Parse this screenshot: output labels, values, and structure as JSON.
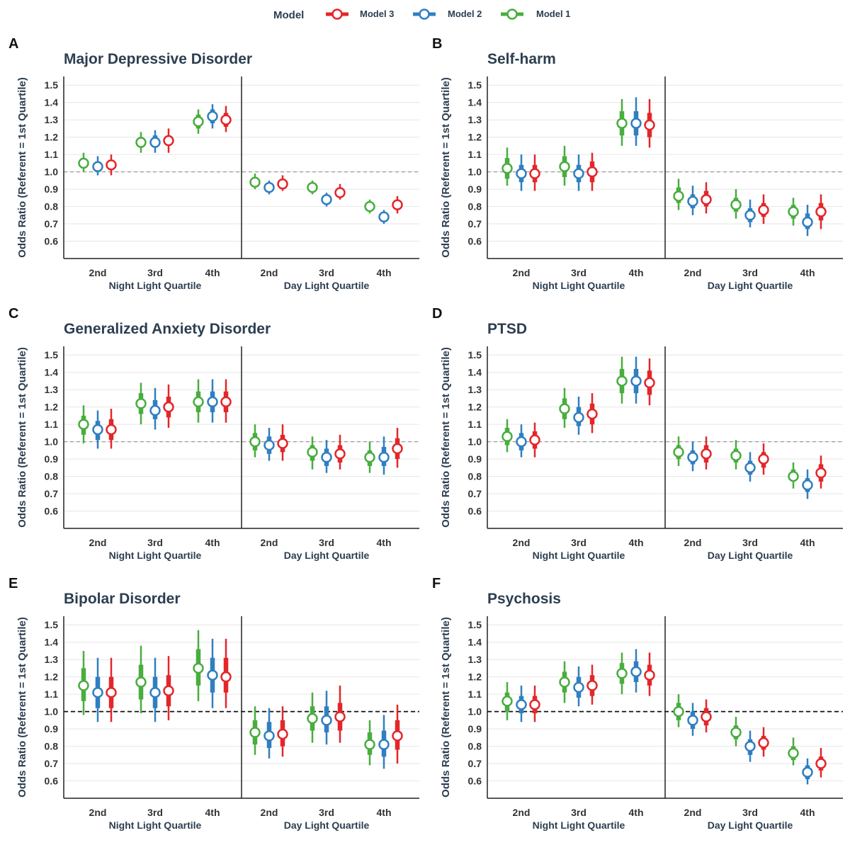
{
  "legend": {
    "title": "Model",
    "items": [
      {
        "label": "Model 3",
        "color": "#e3262a"
      },
      {
        "label": "Model 2",
        "color": "#2f7fc1"
      },
      {
        "label": "Model 1",
        "color": "#49ad3f"
      }
    ]
  },
  "chart_data": [
    {
      "panel": "A",
      "title": "Major Depressive Disorder",
      "type": "pointrange",
      "ylabel": "Odds Ratio (Referent = 1st Quartile)",
      "ylim": [
        0.5,
        1.55
      ],
      "yticks": [
        0.6,
        0.7,
        0.8,
        0.9,
        1.0,
        1.1,
        1.2,
        1.3,
        1.4,
        1.5
      ],
      "ref_line": 1.0,
      "ref_style": "dashed-gray",
      "groups": [
        "Night Light Quartile",
        "Day Light Quartile"
      ],
      "categories": [
        "2nd",
        "3rd",
        "4th"
      ],
      "series": [
        {
          "name": "Model 1",
          "color": "#49ad3f",
          "estimates": [
            [
              1.05,
              1.0,
              1.11,
              1.02,
              1.08
            ],
            [
              1.17,
              1.11,
              1.23,
              1.14,
              1.2
            ],
            [
              1.29,
              1.22,
              1.36,
              1.25,
              1.33
            ],
            [
              0.94,
              0.9,
              0.99,
              0.92,
              0.97
            ],
            [
              0.91,
              0.87,
              0.95,
              0.89,
              0.93
            ],
            [
              0.8,
              0.76,
              0.84,
              0.78,
              0.82
            ]
          ]
        },
        {
          "name": "Model 2",
          "color": "#2f7fc1",
          "estimates": [
            [
              1.03,
              0.98,
              1.09,
              1.0,
              1.06
            ],
            [
              1.17,
              1.11,
              1.24,
              1.14,
              1.21
            ],
            [
              1.32,
              1.25,
              1.39,
              1.28,
              1.36
            ],
            [
              0.91,
              0.87,
              0.95,
              0.89,
              0.93
            ],
            [
              0.84,
              0.8,
              0.88,
              0.82,
              0.86
            ],
            [
              0.74,
              0.7,
              0.78,
              0.72,
              0.76
            ]
          ]
        },
        {
          "name": "Model 3",
          "color": "#e3262a",
          "estimates": [
            [
              1.04,
              0.98,
              1.1,
              1.01,
              1.07
            ],
            [
              1.18,
              1.11,
              1.25,
              1.15,
              1.21
            ],
            [
              1.3,
              1.23,
              1.38,
              1.26,
              1.34
            ],
            [
              0.93,
              0.89,
              0.98,
              0.91,
              0.96
            ],
            [
              0.88,
              0.84,
              0.93,
              0.86,
              0.91
            ],
            [
              0.81,
              0.76,
              0.86,
              0.78,
              0.84
            ]
          ]
        }
      ]
    },
    {
      "panel": "B",
      "title": "Self-harm",
      "type": "pointrange",
      "ylabel": "Odds Ratio (Referent = 1st Quartile)",
      "ylim": [
        0.5,
        1.55
      ],
      "yticks": [
        0.6,
        0.7,
        0.8,
        0.9,
        1.0,
        1.1,
        1.2,
        1.3,
        1.4,
        1.5
      ],
      "ref_line": 1.0,
      "ref_style": "dashed-gray",
      "groups": [
        "Night Light Quartile",
        "Day Light Quartile"
      ],
      "categories": [
        "2nd",
        "3rd",
        "4th"
      ],
      "series": [
        {
          "name": "Model 1",
          "color": "#49ad3f",
          "estimates": [
            [
              1.02,
              0.92,
              1.14,
              0.96,
              1.08
            ],
            [
              1.03,
              0.92,
              1.15,
              0.97,
              1.09
            ],
            [
              1.28,
              1.15,
              1.42,
              1.21,
              1.35
            ],
            [
              0.86,
              0.78,
              0.96,
              0.82,
              0.91
            ],
            [
              0.81,
              0.73,
              0.9,
              0.77,
              0.85
            ],
            [
              0.77,
              0.69,
              0.85,
              0.73,
              0.81
            ]
          ]
        },
        {
          "name": "Model 2",
          "color": "#2f7fc1",
          "estimates": [
            [
              0.99,
              0.89,
              1.1,
              0.94,
              1.04
            ],
            [
              0.99,
              0.89,
              1.1,
              0.94,
              1.04
            ],
            [
              1.28,
              1.15,
              1.43,
              1.21,
              1.35
            ],
            [
              0.83,
              0.75,
              0.92,
              0.79,
              0.87
            ],
            [
              0.75,
              0.68,
              0.84,
              0.71,
              0.79
            ],
            [
              0.71,
              0.63,
              0.81,
              0.67,
              0.76
            ]
          ]
        },
        {
          "name": "Model 3",
          "color": "#e3262a",
          "estimates": [
            [
              0.99,
              0.89,
              1.1,
              0.94,
              1.04
            ],
            [
              1.0,
              0.89,
              1.11,
              0.94,
              1.06
            ],
            [
              1.27,
              1.14,
              1.42,
              1.2,
              1.34
            ],
            [
              0.84,
              0.76,
              0.94,
              0.8,
              0.89
            ],
            [
              0.78,
              0.7,
              0.87,
              0.74,
              0.82
            ],
            [
              0.77,
              0.67,
              0.87,
              0.72,
              0.82
            ]
          ]
        }
      ]
    },
    {
      "panel": "C",
      "title": "Generalized Anxiety Disorder",
      "type": "pointrange",
      "ylabel": "Odds Ratio (Referent = 1st Quartile)",
      "ylim": [
        0.5,
        1.55
      ],
      "yticks": [
        0.6,
        0.7,
        0.8,
        0.9,
        1.0,
        1.1,
        1.2,
        1.3,
        1.4,
        1.5
      ],
      "ref_line": 1.0,
      "ref_style": "dashed-gray",
      "groups": [
        "Night Light Quartile",
        "Day Light Quartile"
      ],
      "categories": [
        "2nd",
        "3rd",
        "4th"
      ],
      "series": [
        {
          "name": "Model 1",
          "color": "#49ad3f",
          "estimates": [
            [
              1.1,
              0.99,
              1.21,
              1.04,
              1.15
            ],
            [
              1.22,
              1.1,
              1.34,
              1.16,
              1.28
            ],
            [
              1.23,
              1.11,
              1.36,
              1.17,
              1.29
            ],
            [
              1.0,
              0.91,
              1.1,
              0.95,
              1.05
            ],
            [
              0.94,
              0.84,
              1.03,
              0.89,
              0.98
            ],
            [
              0.91,
              0.82,
              1.0,
              0.86,
              0.95
            ]
          ]
        },
        {
          "name": "Model 2",
          "color": "#2f7fc1",
          "estimates": [
            [
              1.07,
              0.96,
              1.18,
              1.01,
              1.12
            ],
            [
              1.18,
              1.07,
              1.31,
              1.13,
              1.24
            ],
            [
              1.23,
              1.11,
              1.36,
              1.17,
              1.29
            ],
            [
              0.98,
              0.89,
              1.08,
              0.93,
              1.03
            ],
            [
              0.91,
              0.82,
              1.01,
              0.86,
              0.96
            ],
            [
              0.91,
              0.81,
              1.03,
              0.86,
              0.97
            ]
          ]
        },
        {
          "name": "Model 3",
          "color": "#e3262a",
          "estimates": [
            [
              1.07,
              0.96,
              1.19,
              1.01,
              1.13
            ],
            [
              1.2,
              1.08,
              1.33,
              1.14,
              1.26
            ],
            [
              1.23,
              1.11,
              1.36,
              1.17,
              1.29
            ],
            [
              0.99,
              0.89,
              1.1,
              0.94,
              1.04
            ],
            [
              0.93,
              0.84,
              1.04,
              0.88,
              0.98
            ],
            [
              0.96,
              0.85,
              1.08,
              0.9,
              1.02
            ]
          ]
        }
      ]
    },
    {
      "panel": "D",
      "title": "PTSD",
      "type": "pointrange",
      "ylabel": "Odds Ratio (Referent = 1st Quartile)",
      "ylim": [
        0.5,
        1.55
      ],
      "yticks": [
        0.6,
        0.7,
        0.8,
        0.9,
        1.0,
        1.1,
        1.2,
        1.3,
        1.4,
        1.5
      ],
      "ref_line": 1.0,
      "ref_style": "dashed-gray",
      "groups": [
        "Night Light Quartile",
        "Day Light Quartile"
      ],
      "categories": [
        "2nd",
        "3rd",
        "4th"
      ],
      "series": [
        {
          "name": "Model 1",
          "color": "#49ad3f",
          "estimates": [
            [
              1.03,
              0.94,
              1.13,
              0.98,
              1.08
            ],
            [
              1.19,
              1.08,
              1.31,
              1.13,
              1.25
            ],
            [
              1.35,
              1.22,
              1.49,
              1.28,
              1.42
            ],
            [
              0.94,
              0.86,
              1.03,
              0.9,
              0.98
            ],
            [
              0.92,
              0.84,
              1.01,
              0.88,
              0.96
            ],
            [
              0.8,
              0.73,
              0.88,
              0.77,
              0.84
            ]
          ]
        },
        {
          "name": "Model 2",
          "color": "#2f7fc1",
          "estimates": [
            [
              1.0,
              0.91,
              1.1,
              0.95,
              1.05
            ],
            [
              1.14,
              1.04,
              1.26,
              1.09,
              1.2
            ],
            [
              1.35,
              1.22,
              1.49,
              1.28,
              1.42
            ],
            [
              0.91,
              0.83,
              1.0,
              0.87,
              0.95
            ],
            [
              0.85,
              0.77,
              0.94,
              0.81,
              0.89
            ],
            [
              0.75,
              0.67,
              0.84,
              0.71,
              0.79
            ]
          ]
        },
        {
          "name": "Model 3",
          "color": "#e3262a",
          "estimates": [
            [
              1.01,
              0.91,
              1.11,
              0.96,
              1.06
            ],
            [
              1.16,
              1.05,
              1.28,
              1.1,
              1.22
            ],
            [
              1.34,
              1.21,
              1.48,
              1.27,
              1.41
            ],
            [
              0.93,
              0.84,
              1.03,
              0.88,
              0.98
            ],
            [
              0.9,
              0.81,
              0.99,
              0.85,
              0.94
            ],
            [
              0.82,
              0.73,
              0.92,
              0.77,
              0.87
            ]
          ]
        }
      ]
    },
    {
      "panel": "E",
      "title": "Bipolar Disorder",
      "type": "pointrange",
      "ylabel": "Odds Ratio (Referent = 1st Quartile)",
      "ylim": [
        0.5,
        1.55
      ],
      "yticks": [
        0.6,
        0.7,
        0.8,
        0.9,
        1.0,
        1.1,
        1.2,
        1.3,
        1.4,
        1.5
      ],
      "ref_line": 1.0,
      "ref_style": "dashed-black",
      "groups": [
        "Night Light Quartile",
        "Day Light Quartile"
      ],
      "categories": [
        "2nd",
        "3rd",
        "4th"
      ],
      "series": [
        {
          "name": "Model 1",
          "color": "#49ad3f",
          "estimates": [
            [
              1.15,
              0.98,
              1.35,
              1.06,
              1.25
            ],
            [
              1.17,
              0.99,
              1.38,
              1.07,
              1.27
            ],
            [
              1.25,
              1.06,
              1.47,
              1.15,
              1.36
            ],
            [
              0.88,
              0.75,
              1.03,
              0.81,
              0.95
            ],
            [
              0.96,
              0.82,
              1.11,
              0.89,
              1.03
            ],
            [
              0.81,
              0.69,
              0.95,
              0.75,
              0.88
            ]
          ]
        },
        {
          "name": "Model 2",
          "color": "#2f7fc1",
          "estimates": [
            [
              1.11,
              0.94,
              1.31,
              1.02,
              1.2
            ],
            [
              1.11,
              0.94,
              1.31,
              1.02,
              1.2
            ],
            [
              1.21,
              1.02,
              1.42,
              1.11,
              1.31
            ],
            [
              0.86,
              0.73,
              1.02,
              0.79,
              0.94
            ],
            [
              0.95,
              0.81,
              1.12,
              0.88,
              1.03
            ],
            [
              0.81,
              0.67,
              0.98,
              0.74,
              0.89
            ]
          ]
        },
        {
          "name": "Model 3",
          "color": "#e3262a",
          "estimates": [
            [
              1.11,
              0.94,
              1.31,
              1.02,
              1.2
            ],
            [
              1.12,
              0.95,
              1.32,
              1.03,
              1.21
            ],
            [
              1.2,
              1.02,
              1.42,
              1.11,
              1.31
            ],
            [
              0.87,
              0.74,
              1.03,
              0.8,
              0.95
            ],
            [
              0.97,
              0.82,
              1.15,
              0.89,
              1.05
            ],
            [
              0.86,
              0.7,
              1.04,
              0.78,
              0.95
            ]
          ]
        }
      ]
    },
    {
      "panel": "F",
      "title": "Psychosis",
      "type": "pointrange",
      "ylabel": "Odds Ratio (Referent = 1st Quartile)",
      "ylim": [
        0.5,
        1.55
      ],
      "yticks": [
        0.6,
        0.7,
        0.8,
        0.9,
        1.0,
        1.1,
        1.2,
        1.3,
        1.4,
        1.5
      ],
      "ref_line": 1.0,
      "ref_style": "dashed-black",
      "groups": [
        "Night Light Quartile",
        "Day Light Quartile"
      ],
      "categories": [
        "2nd",
        "3rd",
        "4th"
      ],
      "series": [
        {
          "name": "Model 1",
          "color": "#49ad3f",
          "estimates": [
            [
              1.06,
              0.95,
              1.17,
              1.0,
              1.11
            ],
            [
              1.17,
              1.05,
              1.29,
              1.11,
              1.23
            ],
            [
              1.22,
              1.1,
              1.34,
              1.16,
              1.28
            ],
            [
              1.0,
              0.91,
              1.1,
              0.95,
              1.05
            ],
            [
              0.88,
              0.8,
              0.97,
              0.84,
              0.92
            ],
            [
              0.76,
              0.69,
              0.85,
              0.72,
              0.8
            ]
          ]
        },
        {
          "name": "Model 2",
          "color": "#2f7fc1",
          "estimates": [
            [
              1.04,
              0.94,
              1.15,
              0.99,
              1.09
            ],
            [
              1.14,
              1.03,
              1.26,
              1.08,
              1.2
            ],
            [
              1.23,
              1.11,
              1.36,
              1.17,
              1.29
            ],
            [
              0.95,
              0.86,
              1.05,
              0.9,
              1.0
            ],
            [
              0.8,
              0.71,
              0.89,
              0.75,
              0.84
            ],
            [
              0.65,
              0.58,
              0.73,
              0.61,
              0.69
            ]
          ]
        },
        {
          "name": "Model 3",
          "color": "#e3262a",
          "estimates": [
            [
              1.04,
              0.94,
              1.15,
              0.99,
              1.09
            ],
            [
              1.15,
              1.04,
              1.27,
              1.09,
              1.21
            ],
            [
              1.21,
              1.09,
              1.34,
              1.15,
              1.27
            ],
            [
              0.97,
              0.88,
              1.07,
              0.92,
              1.02
            ],
            [
              0.82,
              0.74,
              0.91,
              0.78,
              0.86
            ],
            [
              0.7,
              0.62,
              0.79,
              0.66,
              0.74
            ]
          ]
        }
      ]
    }
  ]
}
